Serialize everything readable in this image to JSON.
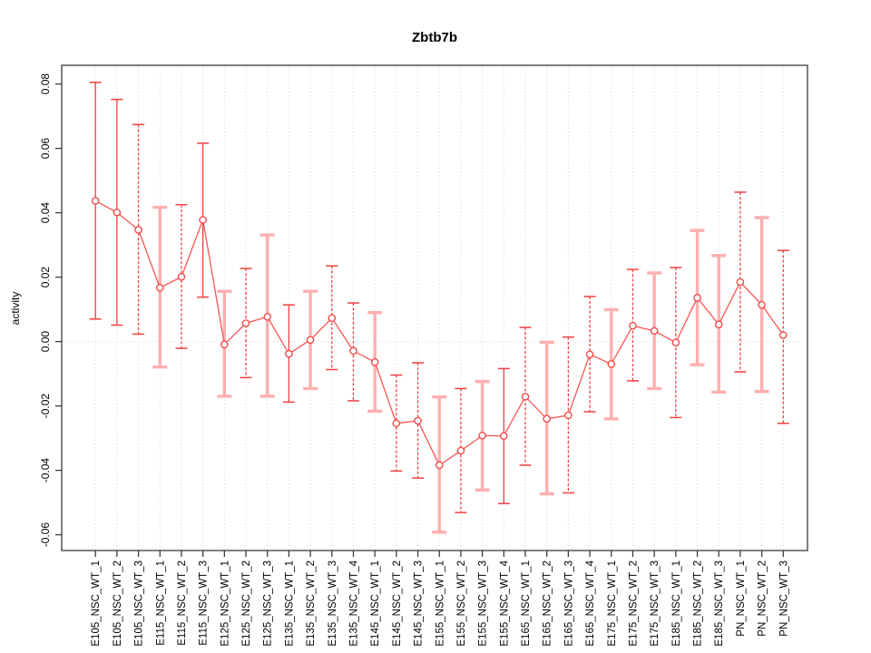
{
  "chart_data": {
    "type": "line",
    "subtype": "points-with-error-bars",
    "title": "Zbtb7b",
    "xlabel": "",
    "ylabel": "activity",
    "legend": "none",
    "grid": {
      "vertical_dotted_per_category": true,
      "horizontal_dotted_zero_line": true
    },
    "ylim": [
      -0.0649,
      0.0858
    ],
    "yticks": [
      0.08,
      0.06,
      0.04,
      0.02,
      0.0,
      -0.02,
      -0.04,
      -0.06
    ],
    "ytick_labels": [
      "0.08",
      "0.06",
      "0.04",
      "0.02",
      "0.00",
      "-0.02",
      "-0.04",
      "-0.06"
    ],
    "categories": [
      "E105_NSC_WT_1",
      "E105_NSC_WT_2",
      "E105_NSC_WT_3",
      "E115_NSC_WT_1",
      "E115_NSC_WT_2",
      "E115_NSC_WT_3",
      "E125_NSC_WT_1",
      "E125_NSC_WT_2",
      "E125_NSC_WT_3",
      "E135_NSC_WT_1",
      "E135_NSC_WT_2",
      "E135_NSC_WT_3",
      "E135_NSC_WT_4",
      "E145_NSC_WT_1",
      "E145_NSC_WT_2",
      "E145_NSC_WT_3",
      "E155_NSC_WT_1",
      "E155_NSC_WT_2",
      "E155_NSC_WT_3",
      "E155_NSC_WT_4",
      "E165_NSC_WT_1",
      "E165_NSC_WT_2",
      "E165_NSC_WT_3",
      "E165_NSC_WT_4",
      "E175_NSC_WT_1",
      "E175_NSC_WT_2",
      "E175_NSC_WT_3",
      "E185_NSC_WT_1",
      "E185_NSC_WT_2",
      "E185_NSC_WT_3",
      "PN_NSC_WT_1",
      "PN_NSC_WT_2",
      "PN_NSC_WT_3"
    ],
    "series": [
      {
        "name": "activity",
        "marker": "open-circle",
        "values": [
          0.0437,
          0.0401,
          0.0347,
          0.0167,
          0.0201,
          0.0378,
          -0.0009,
          0.0057,
          0.0077,
          -0.0038,
          0.0005,
          0.0073,
          -0.0029,
          -0.0064,
          -0.0254,
          -0.0246,
          -0.0384,
          -0.0339,
          -0.0292,
          -0.0293,
          -0.0171,
          -0.024,
          -0.0229,
          -0.004,
          -0.007,
          0.0049,
          0.0033,
          -0.0003,
          0.0136,
          0.0053,
          0.0185,
          0.0114,
          0.002
        ],
        "upper": [
          0.0805,
          0.0752,
          0.0674,
          0.0417,
          0.0425,
          0.0616,
          0.0156,
          0.0227,
          0.0331,
          0.0114,
          0.0156,
          0.0235,
          0.012,
          0.009,
          -0.0104,
          -0.0066,
          -0.0172,
          -0.0146,
          -0.0124,
          -0.0084,
          0.0044,
          -0.0002,
          0.0014,
          0.014,
          0.0099,
          0.0224,
          0.0213,
          0.023,
          0.0345,
          0.0267,
          0.0464,
          0.0385,
          0.0283
        ],
        "lower": [
          0.007,
          0.0051,
          0.0023,
          -0.0079,
          -0.0021,
          0.0138,
          -0.017,
          -0.0112,
          -0.017,
          -0.0188,
          -0.0146,
          -0.0087,
          -0.0184,
          -0.0216,
          -0.0402,
          -0.0424,
          -0.0592,
          -0.0531,
          -0.0461,
          -0.0503,
          -0.0384,
          -0.0473,
          -0.047,
          -0.0218,
          -0.024,
          -0.0122,
          -0.0146,
          -0.0236,
          -0.0072,
          -0.0157,
          -0.0094,
          -0.0155,
          -0.0254
        ],
        "bar_styles": [
          "solid",
          "solid",
          "dashed",
          "pale",
          "dashed",
          "solid",
          "pale",
          "dashed",
          "pale",
          "solid",
          "pale",
          "dashed",
          "dashed",
          "pale",
          "dashed",
          "dashed",
          "pale",
          "dashed",
          "pale",
          "solid",
          "dashed",
          "pale",
          "dashed",
          "dashed",
          "pale",
          "dashed",
          "pale",
          "dashed",
          "pale",
          "pale",
          "dashed",
          "pale",
          "dashed"
        ]
      }
    ],
    "colors": {
      "point": "#f24b4b",
      "line": "#f85555",
      "error_bar_dark": "#ef4040",
      "error_bar_pale": "#ffafaf",
      "grid": "#d8d8d8",
      "axis": "#3c3c3c",
      "background": "#ffffff"
    }
  }
}
